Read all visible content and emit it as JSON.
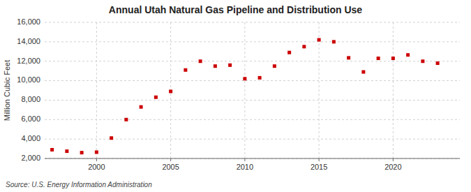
{
  "chart_data": {
    "type": "scatter",
    "title": "Annual Utah Natural Gas Pipeline and Distribution Use",
    "ylabel": "Million Cubic Feet",
    "annotations": [
      "Source: U.S. Energy Information Administration"
    ],
    "color": "#cc0000",
    "marker": "square",
    "grid": true,
    "x": [
      1997,
      1998,
      1999,
      2000,
      2001,
      2002,
      2003,
      2004,
      2005,
      2006,
      2007,
      2008,
      2009,
      2010,
      2011,
      2012,
      2013,
      2014,
      2015,
      2016,
      2017,
      2018,
      2019,
      2020,
      2021,
      2022,
      2023
    ],
    "values": [
      2900,
      2750,
      2600,
      2650,
      4100,
      6000,
      7300,
      8300,
      8900,
      11100,
      12000,
      11500,
      11600,
      10200,
      10300,
      11500,
      12900,
      13500,
      14200,
      14000,
      12350,
      10900,
      12300,
      12300,
      12650,
      12000,
      11800
    ],
    "xlim": [
      1996.5,
      2024.5
    ],
    "xticks": [
      2000,
      2005,
      2010,
      2015,
      2020
    ],
    "ylim": [
      2000,
      16000
    ],
    "yticks": [
      {
        "value": 2000,
        "label": "2,000"
      },
      {
        "value": 4000,
        "label": "4,000"
      },
      {
        "value": 6000,
        "label": "6,000"
      },
      {
        "value": 8000,
        "label": "8,000"
      },
      {
        "value": 10000,
        "label": "10,000"
      },
      {
        "value": 12000,
        "label": "12,000"
      },
      {
        "value": 14000,
        "label": "14,000"
      },
      {
        "value": 16000,
        "label": "16,000"
      }
    ]
  }
}
